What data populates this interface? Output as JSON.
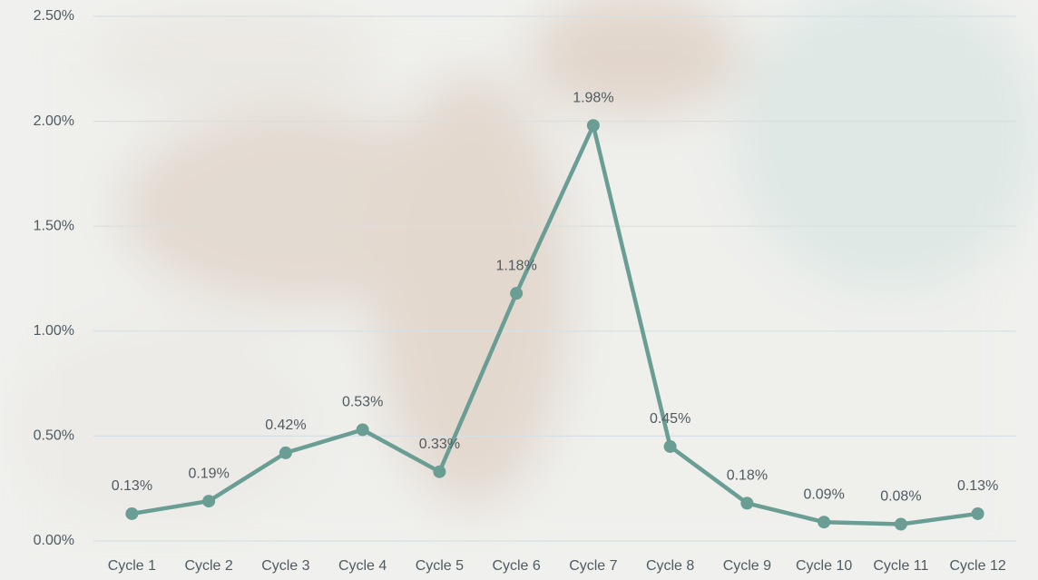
{
  "chart_data": {
    "type": "line",
    "categories": [
      "Cycle 1",
      "Cycle 2",
      "Cycle 3",
      "Cycle 4",
      "Cycle 5",
      "Cycle 6",
      "Cycle 7",
      "Cycle 8",
      "Cycle 9",
      "Cycle 10",
      "Cycle 11",
      "Cycle 12"
    ],
    "values": [
      0.13,
      0.19,
      0.42,
      0.53,
      0.33,
      1.18,
      1.98,
      0.45,
      0.18,
      0.09,
      0.08,
      0.13
    ],
    "value_labels": [
      "0.13%",
      "0.19%",
      "0.42%",
      "0.53%",
      "0.33%",
      "1.18%",
      "1.98%",
      "0.45%",
      "0.18%",
      "0.09%",
      "0.08%",
      "0.13%"
    ],
    "color": "#6a9e94",
    "ylim": [
      0,
      2.5
    ],
    "yticks": [
      {
        "value": 0,
        "label": "0.00%"
      },
      {
        "value": 0.5,
        "label": "0.50%"
      },
      {
        "value": 1,
        "label": "1.00%"
      },
      {
        "value": 1.5,
        "label": "1.50%"
      },
      {
        "value": 2,
        "label": "2.00%"
      },
      {
        "value": 2.5,
        "label": "2.50%"
      }
    ],
    "grid": true
  }
}
